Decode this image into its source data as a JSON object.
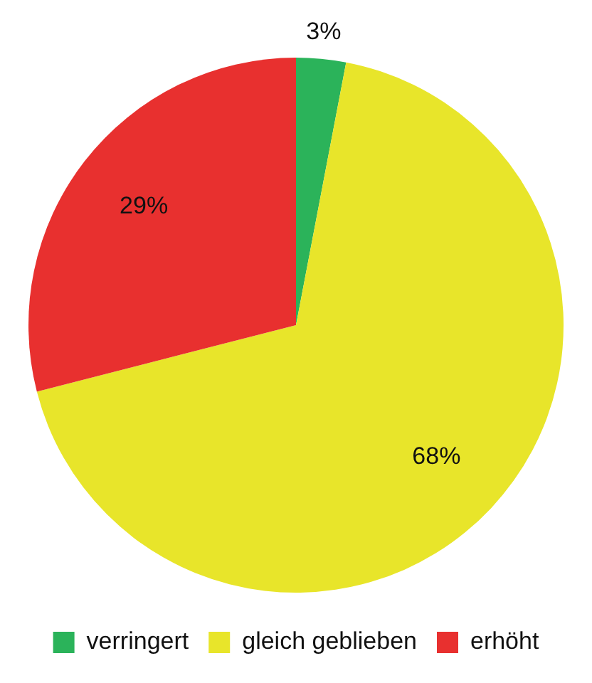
{
  "chart_data": {
    "type": "pie",
    "categories": [
      "verringert",
      "gleich geblieben",
      "erhöht"
    ],
    "values": [
      3,
      68,
      29
    ],
    "colors": [
      "#2bb35a",
      "#e8e52a",
      "#e8302f"
    ],
    "value_labels": [
      "3%",
      "68%",
      "29%"
    ],
    "legend": "bottom"
  }
}
